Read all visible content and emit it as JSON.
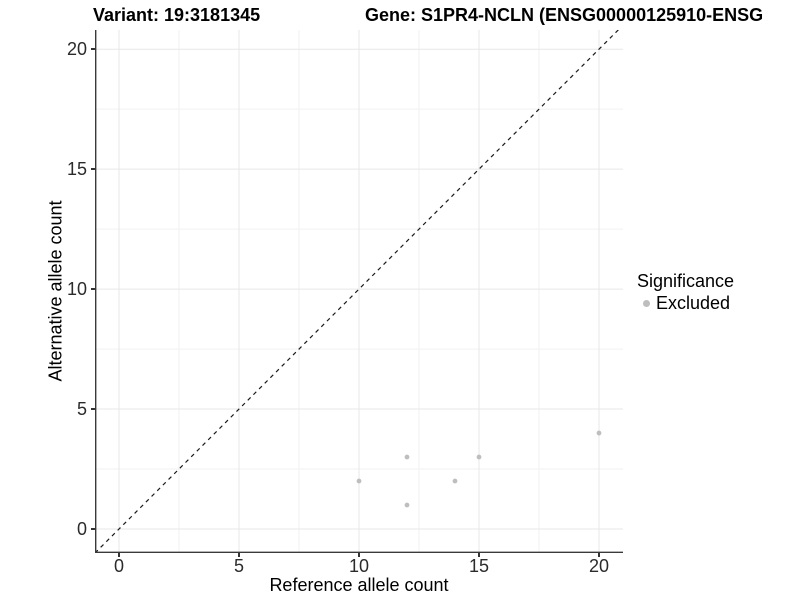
{
  "chart_data": {
    "type": "scatter",
    "titles": {
      "left": "Variant: 19:3181345",
      "right": "Gene: S1PR4-NCLN (ENSG00000125910-ENSG"
    },
    "xlabel": "Reference allele count",
    "ylabel": "Alternative allele count",
    "xlim": [
      -1,
      21
    ],
    "ylim": [
      -1,
      20.8
    ],
    "xticks": [
      0,
      5,
      10,
      15,
      20
    ],
    "yticks": [
      0,
      5,
      10,
      15,
      20
    ],
    "xminor": [
      2.5,
      7.5,
      12.5,
      17.5
    ],
    "yminor": [
      2.5,
      7.5,
      12.5,
      17.5
    ],
    "grid": {
      "show": true,
      "major_color": "#e7e7e7",
      "minor_color": "#f2f2f2"
    },
    "identity_line": {
      "style": "dashed",
      "color": "#1a1a1a",
      "from": [
        -1,
        -1
      ],
      "to": [
        21,
        21
      ]
    },
    "series": [
      {
        "name": "Excluded",
        "marker": "circle",
        "color": "#bebebe",
        "points": [
          [
            10,
            2
          ],
          [
            12,
            1
          ],
          [
            12,
            3
          ],
          [
            14,
            2
          ],
          [
            15,
            3
          ],
          [
            20,
            4
          ]
        ]
      }
    ],
    "legend": {
      "title": "Significance",
      "position": "right",
      "items": [
        {
          "label": "Excluded",
          "color": "#bebebe"
        }
      ]
    }
  },
  "colors": {
    "background": "#ffffff",
    "axis_line": "#3a3a3a",
    "tick_text": "#2b2b2b",
    "point": "#bebebe"
  }
}
